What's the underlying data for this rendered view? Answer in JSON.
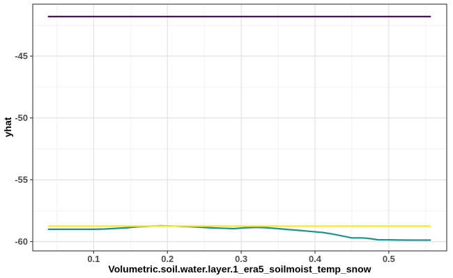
{
  "chart_data": {
    "type": "line",
    "title": "",
    "xlabel": "Volumetric.soil.water.layer.1_era5_soilmoist_temp_snow",
    "ylabel": "yhat",
    "xlim": [
      0.0175,
      0.5785
    ],
    "ylim": [
      -60.75,
      -40.8
    ],
    "x_ticks": [
      0.1,
      0.2,
      0.3,
      0.4,
      0.5
    ],
    "x_tick_labels": [
      "0.1",
      "0.2",
      "0.3",
      "0.4",
      "0.5"
    ],
    "y_ticks": [
      -45,
      -50,
      -55,
      -60
    ],
    "y_tick_labels": [
      "-45",
      "-50",
      "-55",
      "-60"
    ],
    "x_minor_ticks": [
      0.05,
      0.15,
      0.25,
      0.35,
      0.45,
      0.55
    ],
    "y_minor_ticks": [
      -42.5,
      -47.5,
      -52.5,
      -57.5
    ],
    "grid": true,
    "legend": "none",
    "series": [
      {
        "color": "#440154",
        "x": [
          0.038,
          0.557
        ],
        "y": [
          -41.8,
          -41.8
        ]
      },
      {
        "color": "#21908C",
        "x": [
          0.038,
          0.06,
          0.08,
          0.1,
          0.115,
          0.13,
          0.145,
          0.16,
          0.175,
          0.19,
          0.2,
          0.215,
          0.23,
          0.245,
          0.26,
          0.275,
          0.29,
          0.305,
          0.32,
          0.335,
          0.35,
          0.365,
          0.38,
          0.395,
          0.41,
          0.42,
          0.43,
          0.44,
          0.45,
          0.465,
          0.475,
          0.485,
          0.5,
          0.515,
          0.53,
          0.545,
          0.557
        ],
        "y": [
          -59.0,
          -59.0,
          -59.0,
          -59.0,
          -58.98,
          -58.93,
          -58.88,
          -58.8,
          -58.76,
          -58.72,
          -58.73,
          -58.76,
          -58.79,
          -58.84,
          -58.89,
          -58.92,
          -58.95,
          -58.88,
          -58.85,
          -58.88,
          -58.95,
          -59.03,
          -59.1,
          -59.18,
          -59.26,
          -59.35,
          -59.46,
          -59.58,
          -59.7,
          -59.7,
          -59.76,
          -59.85,
          -59.86,
          -59.87,
          -59.88,
          -59.88,
          -59.88
        ]
      },
      {
        "color": "#FDE725",
        "x": [
          0.038,
          0.557
        ],
        "y": [
          -58.75,
          -58.75
        ]
      }
    ]
  }
}
